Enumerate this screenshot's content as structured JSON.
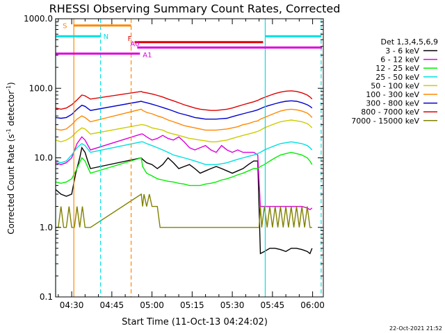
{
  "chart_data": {
    "type": "line",
    "title": "RHESSI Observing Summary Count Rates, Corrected",
    "xlabel": "Start Time (11-Oct-13 04:24:02)",
    "ylabel_main": "Corrected Count Rate (s",
    "ylabel_sup1": "-1",
    "ylabel_mid": " detector",
    "ylabel_sup2": "-1",
    "ylabel_end": ")",
    "yscale": "log",
    "ylim": [
      0.1,
      1000
    ],
    "xlim_min": [
      264,
      364
    ],
    "yticks": [
      {
        "v": 0.1,
        "label": "0.1"
      },
      {
        "v": 1,
        "label": "1.0"
      },
      {
        "v": 10,
        "label": "10.0"
      },
      {
        "v": 100,
        "label": "100.0"
      },
      {
        "v": 1000,
        "label": "1000.0"
      }
    ],
    "xticks": [
      {
        "v": 270,
        "label": "04:30"
      },
      {
        "v": 285,
        "label": "04:45"
      },
      {
        "v": 300,
        "label": "05:00"
      },
      {
        "v": 315,
        "label": "05:15"
      },
      {
        "v": 330,
        "label": "05:30"
      },
      {
        "v": 345,
        "label": "05:45"
      },
      {
        "v": 360,
        "label": "06:00"
      }
    ],
    "legend_title": "Det 1,3,4,5,6,9",
    "legend_position": "right",
    "series": [
      {
        "name": "3 - 6 keV",
        "color": "#000000",
        "x": [
          264,
          266,
          268,
          270,
          271.5,
          273,
          273.8,
          275,
          276,
          277,
          296,
          296.5,
          298,
          300,
          302,
          304,
          306,
          308,
          310,
          312,
          314,
          316,
          318,
          320,
          322,
          324,
          326,
          328,
          330,
          332,
          334,
          336,
          338,
          339.5,
          340.5,
          342,
          344,
          346,
          348,
          350,
          352,
          354,
          356,
          358,
          359,
          359.8
        ],
        "y": [
          3.5,
          3,
          2.8,
          3,
          6,
          10,
          14,
          12,
          9,
          7,
          10,
          9.5,
          8.5,
          8,
          7,
          8,
          10,
          8.5,
          7,
          7.5,
          8,
          7,
          6,
          6.5,
          7,
          7.5,
          7,
          6.5,
          6,
          6.5,
          7,
          8,
          9,
          9,
          0.42,
          0.45,
          0.5,
          0.5,
          0.48,
          0.45,
          0.5,
          0.5,
          0.48,
          0.45,
          0.42,
          0.5
        ]
      },
      {
        "name": "6 - 12 keV",
        "color": "#dd00dd",
        "x": [
          264,
          266,
          268,
          270,
          272,
          273.8,
          275,
          277,
          296,
          296.5,
          298,
          300,
          302,
          304,
          306,
          308,
          310,
          312,
          314,
          316,
          318,
          320,
          322,
          324,
          326,
          328,
          330,
          332,
          334,
          336,
          338,
          339.5,
          340.5,
          342,
          344,
          346,
          348,
          350,
          352,
          354,
          356,
          358,
          359,
          359.8
        ],
        "y": [
          8.5,
          8,
          8.5,
          10,
          16,
          20,
          18,
          13,
          22,
          22,
          20,
          18,
          19,
          21,
          19,
          18,
          20,
          17,
          14,
          13,
          14,
          15,
          13,
          12,
          15,
          13,
          12,
          13,
          12,
          12,
          12,
          11,
          2,
          2,
          2,
          2,
          2,
          2,
          2,
          2,
          2,
          1.9,
          1.8,
          1.9
        ]
      },
      {
        "name": "12 - 25 keV",
        "color": "#00ee00",
        "x": [
          264,
          266,
          268,
          270,
          272,
          273.8,
          275,
          277,
          296,
          296.5,
          298,
          300,
          302,
          304,
          306,
          308,
          310,
          312,
          314,
          316,
          318,
          320,
          322,
          324,
          326,
          328,
          330,
          332,
          334,
          336,
          338,
          339.5,
          340.5,
          342,
          344,
          346,
          348,
          350,
          352,
          354,
          356,
          358,
          359,
          359.8
        ],
        "y": [
          4.5,
          4.3,
          4.5,
          5,
          7,
          10,
          9,
          6,
          10,
          7.5,
          6,
          5.5,
          5,
          4.8,
          4.6,
          4.5,
          4.3,
          4.2,
          4,
          4,
          4,
          4.2,
          4.3,
          4.5,
          4.8,
          5,
          5.3,
          5.7,
          6,
          6.5,
          7,
          7,
          7.5,
          8,
          9,
          10,
          11,
          11.5,
          12,
          11.5,
          11,
          10,
          9,
          8
        ]
      },
      {
        "name": "25 - 50 keV",
        "color": "#00e0e0",
        "x": [
          264,
          266,
          268,
          270,
          272,
          273.8,
          275,
          277,
          296,
          296.5,
          298,
          300,
          302,
          304,
          306,
          308,
          310,
          312,
          314,
          316,
          318,
          320,
          322,
          324,
          326,
          328,
          330,
          332,
          334,
          336,
          338,
          339.5,
          340.5,
          342,
          344,
          346,
          348,
          350,
          352,
          354,
          356,
          358,
          359,
          359.8
        ],
        "y": [
          9,
          8.5,
          9,
          11,
          14,
          16,
          15,
          12,
          17,
          17,
          16,
          15,
          14,
          13,
          12,
          11,
          10.5,
          10,
          9.5,
          9,
          8.5,
          8,
          8,
          8,
          8.2,
          8.5,
          9,
          9.5,
          10,
          10.5,
          11,
          11.5,
          12,
          13,
          14,
          15,
          16,
          16.5,
          17,
          16.5,
          16,
          15,
          14,
          13
        ]
      },
      {
        "name": "50 - 100 keV",
        "color": "#cccc00",
        "x": [
          264,
          266,
          268,
          270,
          272,
          273.8,
          275,
          277,
          296,
          296.5,
          298,
          300,
          302,
          304,
          306,
          308,
          310,
          312,
          314,
          316,
          318,
          320,
          322,
          324,
          326,
          328,
          330,
          332,
          334,
          336,
          338,
          339.5,
          340.5,
          342,
          344,
          346,
          348,
          350,
          352,
          354,
          356,
          358,
          359,
          359.8
        ],
        "y": [
          18,
          17,
          18,
          20,
          24,
          27,
          26,
          22,
          30,
          30,
          29,
          27,
          26,
          25,
          23,
          22,
          21,
          20,
          19,
          18.5,
          18,
          17.5,
          17,
          17,
          17.5,
          18,
          19,
          20,
          21,
          22,
          23,
          24,
          25,
          27,
          29,
          31,
          33,
          34,
          35,
          34,
          33,
          31,
          29,
          27
        ]
      },
      {
        "name": "100 - 300 keV",
        "color": "#ff8800",
        "x": [
          264,
          266,
          268,
          270,
          272,
          273.8,
          275,
          277,
          296,
          296.5,
          298,
          300,
          302,
          304,
          306,
          308,
          310,
          312,
          314,
          316,
          318,
          320,
          322,
          324,
          326,
          328,
          330,
          332,
          334,
          336,
          338,
          339.5,
          340.5,
          342,
          344,
          346,
          348,
          350,
          352,
          354,
          356,
          358,
          359,
          359.8
        ],
        "y": [
          26,
          25,
          26,
          30,
          36,
          40,
          38,
          33,
          50,
          48,
          45,
          43,
          40,
          38,
          35,
          33,
          31,
          29,
          28,
          27,
          26,
          25,
          25,
          25,
          25.5,
          26,
          27,
          28,
          30,
          31,
          33,
          34,
          36,
          38,
          41,
          44,
          47,
          49,
          50,
          49,
          47,
          44,
          41,
          38
        ]
      },
      {
        "name": "300 - 800 keV",
        "color": "#0000cc",
        "x": [
          264,
          266,
          268,
          270,
          272,
          273.8,
          275,
          277,
          296,
          296.5,
          298,
          300,
          302,
          304,
          306,
          308,
          310,
          312,
          314,
          316,
          318,
          320,
          322,
          324,
          326,
          328,
          330,
          332,
          334,
          336,
          338,
          339.5,
          340.5,
          342,
          344,
          346,
          348,
          350,
          352,
          354,
          356,
          358,
          359,
          359.8
        ],
        "y": [
          38,
          37,
          38,
          42,
          50,
          57,
          55,
          48,
          65,
          64,
          62,
          59,
          56,
          53,
          50,
          47,
          44,
          42,
          40,
          38,
          37,
          36,
          36,
          36,
          36.5,
          37,
          39,
          41,
          43,
          45,
          47,
          49,
          51,
          54,
          57,
          60,
          63,
          65,
          66,
          65,
          62,
          58,
          55,
          52
        ]
      },
      {
        "name": "800 - 7000 keV",
        "color": "#dd0000",
        "x": [
          264,
          266,
          268,
          270,
          272,
          273.8,
          275,
          277,
          296,
          296.5,
          298,
          300,
          302,
          304,
          306,
          308,
          310,
          312,
          314,
          316,
          318,
          320,
          322,
          324,
          326,
          328,
          330,
          332,
          334,
          336,
          338,
          339.5,
          340.5,
          342,
          344,
          346,
          348,
          350,
          352,
          354,
          356,
          358,
          359,
          359.8
        ],
        "y": [
          52,
          50,
          52,
          58,
          68,
          80,
          78,
          70,
          90,
          88,
          86,
          83,
          79,
          75,
          70,
          66,
          62,
          58,
          55,
          52,
          50,
          49,
          48,
          48,
          49,
          50,
          52,
          55,
          58,
          61,
          64,
          67,
          70,
          74,
          79,
          84,
          88,
          91,
          92,
          90,
          86,
          80,
          75,
          70
        ]
      },
      {
        "name": "7000 - 15000 keV",
        "color": "#808000",
        "x": [
          264,
          265,
          266,
          267,
          268,
          269,
          270,
          271,
          272,
          273,
          274,
          275,
          276,
          277,
          296,
          296.5,
          297,
          298,
          299,
          300,
          301,
          302,
          303,
          304,
          340,
          340.5,
          341,
          342,
          343,
          344,
          345,
          346,
          347,
          348,
          349,
          350,
          351,
          352,
          353,
          354,
          355,
          356,
          357,
          358,
          359,
          359.8
        ],
        "y": [
          1,
          1,
          2,
          1,
          1,
          2,
          1,
          1,
          2,
          1,
          2,
          1,
          1,
          1,
          3,
          2,
          3,
          2,
          3,
          2,
          2,
          2,
          1,
          1,
          1,
          2,
          1,
          2,
          1,
          2,
          1,
          2,
          1,
          2,
          1,
          2,
          1,
          2,
          1,
          2,
          1,
          2,
          1,
          2,
          1,
          1
        ]
      }
    ],
    "annotations": {
      "orange_vlines": [
        {
          "x": 270.8,
          "style": "solid"
        },
        {
          "x": 292.2,
          "style": "dashed"
        }
      ],
      "cyan_vlines": [
        {
          "x": 264,
          "style": "solid"
        },
        {
          "x": 280.8,
          "style": "dashed"
        },
        {
          "x": 342.3,
          "style": "solid"
        },
        {
          "x": 363.2,
          "style": "dashed"
        }
      ],
      "bars": [
        {
          "label": "S",
          "color": "#ff8800",
          "x0": 270.8,
          "x1": 292.2,
          "y": 800
        },
        {
          "label": "N",
          "color": "#00e0e0",
          "x0": 264,
          "x1": 280.8,
          "y": 560
        },
        {
          "label": "N",
          "color": "#00e0e0",
          "x0": 342.3,
          "x1": 363.2,
          "y": 560
        },
        {
          "label": "F",
          "color": "#dd0000",
          "x0": 293.5,
          "x1": 341.5,
          "y": 460
        },
        {
          "label": "A0",
          "color": "#dd00dd",
          "x0": 294.5,
          "x1": 363.5,
          "y": 385
        },
        {
          "label": "A1",
          "color": "#dd00dd",
          "x0": 264,
          "x1": 295.5,
          "y": 315
        }
      ]
    }
  },
  "footer": {
    "timestamp": "22-Oct-2021 21:52"
  }
}
